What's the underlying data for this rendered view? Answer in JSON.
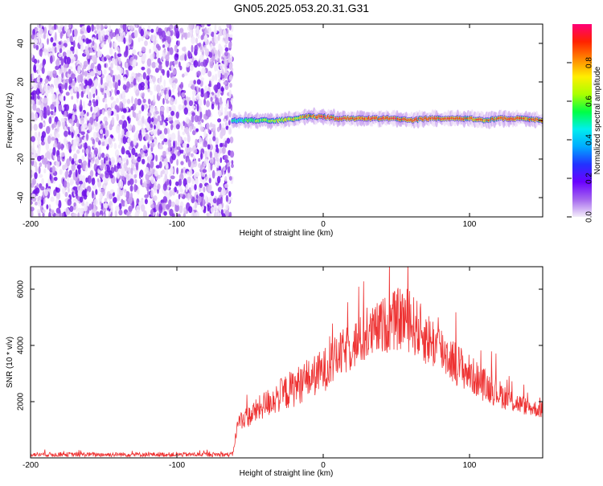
{
  "title": "GN05.2025.053.20.31.G31",
  "colors": {
    "snr_line": "#ee3333",
    "noise_purple": "#7a1fe8",
    "colormap": [
      "#f0e6f8",
      "#cc99ee",
      "#8a2be2",
      "#5a00ff",
      "#0033ff",
      "#00ccff",
      "#00ff66",
      "#ccff00",
      "#ffaa00",
      "#ff2200",
      "#ff0066"
    ]
  },
  "chart_data": [
    {
      "type": "heatmap",
      "name": "spectrogram",
      "xlabel": "Height of straight line (km)",
      "ylabel": "Frequency (Hz)",
      "xlim": [
        -200,
        150
      ],
      "ylim": [
        -50,
        50
      ],
      "xticks": [
        -200,
        -100,
        0,
        100
      ],
      "yticks": [
        -40,
        -20,
        0,
        20,
        40
      ],
      "noise_region_x": [
        -200,
        -62
      ],
      "signal_track": {
        "x": [
          -62,
          -50,
          -40,
          -30,
          -20,
          -12,
          -5,
          0,
          10,
          20,
          30,
          40,
          50,
          60,
          70,
          80,
          90,
          100,
          110,
          120,
          130,
          140,
          150
        ],
        "freq": [
          0,
          0,
          0,
          0,
          1,
          2,
          2,
          2,
          1,
          1,
          1,
          1,
          1,
          0,
          1,
          1,
          1,
          1,
          0,
          1,
          1,
          1,
          0
        ],
        "amplitude": [
          0.35,
          0.5,
          0.55,
          0.6,
          0.65,
          0.75,
          0.85,
          0.9,
          0.9,
          0.85,
          0.85,
          0.9,
          0.9,
          0.85,
          0.9,
          0.9,
          0.85,
          0.85,
          0.8,
          0.85,
          0.85,
          0.85,
          0.85
        ]
      },
      "colorbar": {
        "label": "Normalized spectral amplitude",
        "range": [
          0,
          1
        ],
        "ticks": [
          "0.0",
          "0.2",
          "0.4",
          "0.6",
          "0.8"
        ]
      }
    },
    {
      "type": "line",
      "name": "snr",
      "xlabel": "Height of straight line (km)",
      "ylabel": "SNR (10 * v/v)",
      "xlim": [
        -200,
        150
      ],
      "ylim": [
        0,
        6800
      ],
      "xticks": [
        -200,
        -100,
        0,
        100
      ],
      "yticks": [
        2000,
        4000,
        6000
      ],
      "envelope": {
        "x": [
          -200,
          -150,
          -100,
          -62,
          -58,
          -50,
          -40,
          -30,
          -20,
          -10,
          0,
          10,
          20,
          30,
          40,
          50,
          55,
          60,
          70,
          80,
          90,
          100,
          110,
          120,
          130,
          140,
          150
        ],
        "mean": [
          120,
          120,
          120,
          120,
          1300,
          1500,
          1900,
          2200,
          2500,
          2800,
          3100,
          3600,
          4000,
          4300,
          4700,
          4900,
          5000,
          4800,
          4300,
          3900,
          3400,
          3000,
          2600,
          2300,
          2000,
          1800,
          1700
        ],
        "amplitude": [
          80,
          80,
          80,
          80,
          300,
          400,
          500,
          600,
          700,
          700,
          800,
          800,
          900,
          900,
          1000,
          1100,
          1200,
          1100,
          1000,
          900,
          800,
          700,
          600,
          500,
          400,
          300,
          300
        ]
      }
    }
  ]
}
